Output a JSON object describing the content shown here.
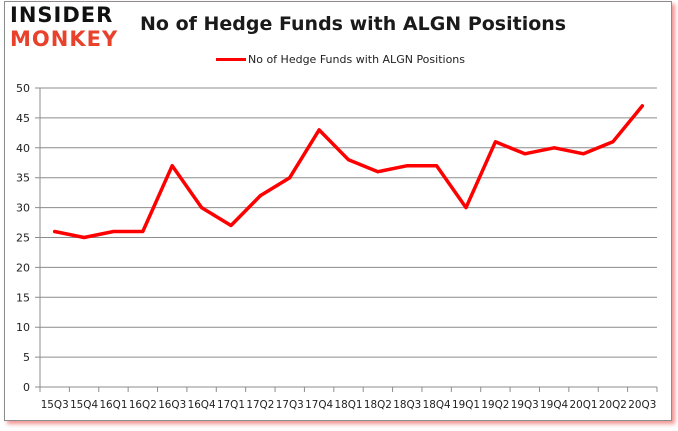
{
  "logo": {
    "line1": "INSIDER",
    "line2": "MONKEY"
  },
  "header": {
    "title": "No of Hedge Funds with ALGN Positions"
  },
  "legend": {
    "label": "No of Hedge Funds with ALGN Positions",
    "color": "#ff0000"
  },
  "chart_data": {
    "type": "line",
    "title": "No of Hedge Funds with ALGN Positions",
    "xlabel": "",
    "ylabel": "",
    "ylim": [
      0,
      50
    ],
    "yticks": [
      0,
      5,
      10,
      15,
      20,
      25,
      30,
      35,
      40,
      45,
      50
    ],
    "grid": true,
    "legend_position": "top",
    "categories": [
      "15Q3",
      "15Q4",
      "16Q1",
      "16Q2",
      "16Q3",
      "16Q4",
      "17Q1",
      "17Q2",
      "17Q3",
      "17Q4",
      "18Q1",
      "18Q2",
      "18Q3",
      "18Q4",
      "19Q1",
      "19Q2",
      "19Q3",
      "19Q4",
      "20Q1",
      "20Q2",
      "20Q3"
    ],
    "series": [
      {
        "name": "No of Hedge Funds with ALGN Positions",
        "color": "#ff0000",
        "values": [
          26,
          25,
          26,
          26,
          37,
          30,
          27,
          32,
          35,
          43,
          38,
          36,
          37,
          37,
          30,
          41,
          39,
          40,
          39,
          41,
          47
        ]
      }
    ]
  }
}
